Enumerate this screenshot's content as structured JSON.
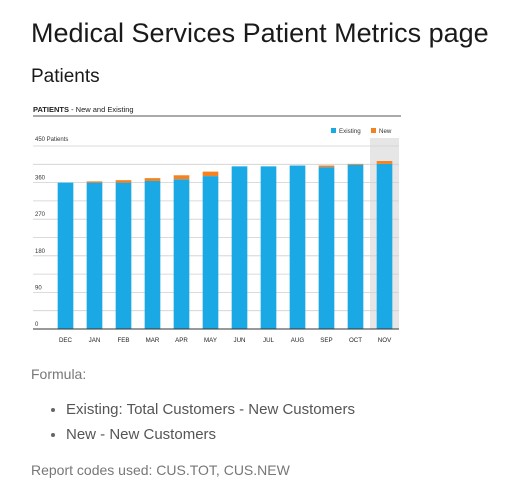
{
  "page": {
    "title": "Medical Services Patient Metrics page",
    "section_title": "Patients"
  },
  "chart_data": {
    "type": "bar",
    "stacked": true,
    "title_bold": "PATIENTS",
    "title_rest": " - New and Existing",
    "ylabel": "450 Patients",
    "categories": [
      "DEC",
      "JAN",
      "FEB",
      "MAR",
      "APR",
      "MAY",
      "JUN",
      "JUL",
      "AUG",
      "SEP",
      "OCT",
      "NOV"
    ],
    "ylim": [
      0,
      450
    ],
    "yticks": [
      0,
      90,
      180,
      270,
      360
    ],
    "ytick_labels": [
      "0",
      "90",
      "180",
      "270",
      "360"
    ],
    "series": [
      {
        "name": "Existing",
        "color": "#1ba9e6",
        "values": [
          360,
          360,
          360,
          364,
          368,
          376,
          400,
          400,
          402,
          398,
          404,
          406
        ]
      },
      {
        "name": "New",
        "color": "#f58220",
        "values": [
          0,
          3,
          6,
          7,
          10,
          11,
          0,
          0,
          0,
          4,
          2,
          7
        ]
      }
    ],
    "legend_position": "top-right",
    "grid": true,
    "highlight_category": "NOV"
  },
  "formula": {
    "label": "Formula:",
    "items": [
      "Existing: Total Customers - New Customers",
      "New - New Customers"
    ]
  },
  "report_codes": "Report codes used: CUS.TOT, CUS.NEW"
}
